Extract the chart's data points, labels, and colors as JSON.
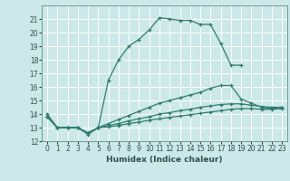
{
  "xlabel": "Humidex (Indice chaleur)",
  "bg_color": "#cce8e8",
  "line_color": "#2e7d6e",
  "grid_color": "#b0d4d4",
  "ylim": [
    12,
    22
  ],
  "xlim": [
    -0.5,
    23.5
  ],
  "yticks": [
    12,
    13,
    14,
    15,
    16,
    17,
    18,
    19,
    20,
    21
  ],
  "xticks": [
    0,
    1,
    2,
    3,
    4,
    5,
    6,
    7,
    8,
    9,
    10,
    11,
    12,
    13,
    14,
    15,
    16,
    17,
    18,
    19,
    20,
    21,
    22,
    23
  ],
  "tick_fontsize": 5.5,
  "xlabel_fontsize": 6.5,
  "series": [
    {
      "x": [
        0,
        1,
        2,
        3,
        4,
        5,
        6,
        7,
        8,
        9,
        10,
        11,
        12,
        13,
        14,
        15,
        16,
        17,
        18,
        19
      ],
      "y": [
        14,
        13,
        13,
        13,
        12.5,
        13,
        16.5,
        18,
        19,
        19.5,
        20.2,
        21.1,
        21.0,
        20.9,
        20.9,
        20.6,
        20.6,
        19.2,
        17.6,
        17.6
      ]
    },
    {
      "x": [
        0,
        1,
        2,
        3,
        4,
        5,
        6,
        7,
        8,
        9,
        10,
        11,
        12,
        13,
        14,
        15,
        16,
        17,
        18,
        19,
        20,
        21,
        22,
        23
      ],
      "y": [
        13.8,
        13,
        13,
        13,
        12.6,
        13.0,
        13.3,
        13.6,
        13.9,
        14.2,
        14.5,
        14.8,
        15.0,
        15.2,
        15.4,
        15.6,
        15.9,
        16.1,
        16.1,
        15.1,
        14.8,
        14.5,
        14.4,
        14.5
      ]
    },
    {
      "x": [
        0,
        1,
        2,
        3,
        4,
        5,
        6,
        7,
        8,
        9,
        10,
        11,
        12,
        13,
        14,
        15,
        16,
        17,
        18,
        19,
        20,
        21,
        22,
        23
      ],
      "y": [
        13.8,
        13,
        13,
        13,
        12.6,
        13.0,
        13.15,
        13.3,
        13.5,
        13.65,
        13.8,
        14.0,
        14.1,
        14.25,
        14.35,
        14.5,
        14.6,
        14.7,
        14.75,
        14.75,
        14.65,
        14.55,
        14.5,
        14.5
      ]
    },
    {
      "x": [
        0,
        1,
        2,
        3,
        4,
        5,
        6,
        7,
        8,
        9,
        10,
        11,
        12,
        13,
        14,
        15,
        16,
        17,
        18,
        19,
        20,
        21,
        22,
        23
      ],
      "y": [
        13.8,
        13,
        13,
        13,
        12.6,
        13.0,
        13.05,
        13.15,
        13.3,
        13.4,
        13.55,
        13.65,
        13.75,
        13.85,
        13.95,
        14.05,
        14.15,
        14.25,
        14.35,
        14.4,
        14.4,
        14.35,
        14.35,
        14.4
      ]
    }
  ]
}
